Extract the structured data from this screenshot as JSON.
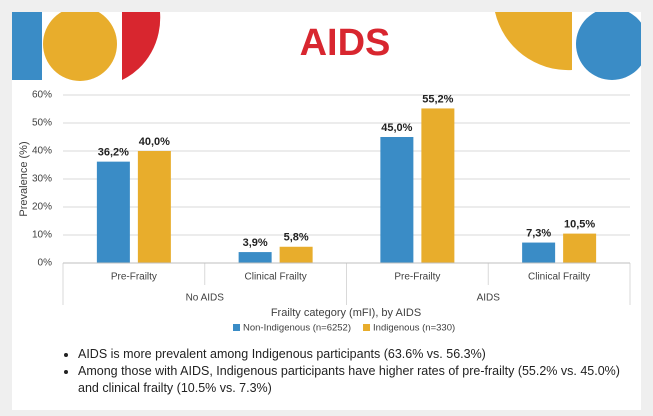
{
  "chart_data": {
    "type": "bar",
    "title": "AIDS",
    "categories": [
      "Pre-Frailty",
      "Clinical Frailty",
      "Pre-Frailty",
      "Clinical Frailty"
    ],
    "groups": [
      {
        "label": "No AIDS",
        "span": 2
      },
      {
        "label": "AIDS",
        "span": 2
      }
    ],
    "series": [
      {
        "name": "Non-Indigenous (n=6252)",
        "color": "#3a8cc6",
        "values": [
          36.2,
          3.9,
          45.0,
          7.3
        ],
        "value_labels": [
          "36,2%",
          "3,9%",
          "45,0%",
          "7,3%"
        ]
      },
      {
        "name": "Indigenous (n=330)",
        "color": "#e8ad2c",
        "values": [
          40.0,
          5.8,
          55.2,
          10.5
        ],
        "value_labels": [
          "40,0%",
          "5,8%",
          "55,2%",
          "10,5%"
        ]
      }
    ],
    "x_label": "Frailty category (mFI), by AIDS",
    "y_label": "Prevalence (%)",
    "ylim": [
      0,
      60
    ],
    "yticks": [
      {
        "value": 0,
        "label": "0%"
      },
      {
        "value": 10,
        "label": "10%"
      },
      {
        "value": 20,
        "label": "20%"
      },
      {
        "value": 30,
        "label": "30%"
      },
      {
        "value": 40,
        "label": "40%"
      },
      {
        "value": 50,
        "label": "50%"
      },
      {
        "value": 60,
        "label": "60%"
      }
    ],
    "grid": true,
    "legend": "bottom"
  },
  "bullets": [
    "AIDS is more prevalent among Indigenous participants (63.6% vs. 56.3%)",
    "Among those with AIDS, Indigenous participants have higher rates of pre-frailty (55.2% vs. 45.0%) and clinical frailty (10.5% vs. 7.3%)"
  ]
}
